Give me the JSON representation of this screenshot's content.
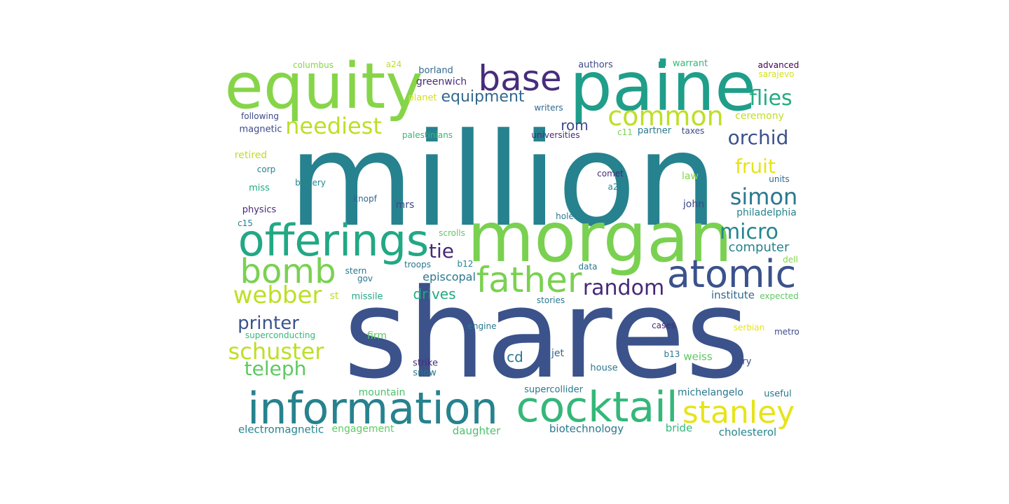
{
  "words": [
    {
      "text": "million",
      "color": "#26828e"
    },
    {
      "text": "shares",
      "color": "#3b528b"
    },
    {
      "text": "morgan",
      "color": "#7ad151"
    },
    {
      "text": "paine",
      "color": "#1f9e89"
    },
    {
      "text": "equity",
      "color": "#86d549"
    },
    {
      "text": "information",
      "color": "#26828e"
    },
    {
      "text": "cocktail",
      "color": "#35b779"
    },
    {
      "text": "offerings",
      "color": "#22a884"
    },
    {
      "text": "atomic",
      "color": "#3b528b"
    },
    {
      "text": "father",
      "color": "#7ad151"
    },
    {
      "text": "base",
      "color": "#472d7b"
    },
    {
      "text": "bomb",
      "color": "#7ad151"
    },
    {
      "text": "common",
      "color": "#bddf26"
    },
    {
      "text": "stanley",
      "color": "#e6e419"
    },
    {
      "text": "random",
      "color": "#482878"
    },
    {
      "text": "webber",
      "color": "#bddf26"
    },
    {
      "text": "schuster",
      "color": "#bddf26"
    },
    {
      "text": "neediest",
      "color": "#bddf26"
    },
    {
      "text": "simon",
      "color": "#2a788e"
    },
    {
      "text": "micro",
      "color": "#25858e"
    },
    {
      "text": "teleph",
      "color": "#5ec962"
    },
    {
      "text": "printer",
      "color": "#3b528b"
    },
    {
      "text": "orchid",
      "color": "#3b528b"
    },
    {
      "text": "flies",
      "color": "#25ab82"
    },
    {
      "text": "fruit",
      "color": "#e6e419"
    },
    {
      "text": "equipment",
      "color": "#31688e"
    },
    {
      "text": "tie",
      "color": "#482878"
    },
    {
      "text": "computer",
      "color": "#26828e"
    },
    {
      "text": "drives",
      "color": "#22a884"
    },
    {
      "text": "cd",
      "color": "#2a788e"
    },
    {
      "text": "rom",
      "color": "#3e4989"
    },
    {
      "text": "episcopal",
      "color": "#2a788e"
    },
    {
      "text": "institute",
      "color": "#31688e"
    },
    {
      "text": "biotechnology",
      "color": "#2a788e"
    },
    {
      "text": "electromagnetic",
      "color": "#25858e"
    },
    {
      "text": "engagement",
      "color": "#5ec962"
    },
    {
      "text": "daughter",
      "color": "#4ac16d"
    },
    {
      "text": "bride",
      "color": "#35b779"
    },
    {
      "text": "cholesterol",
      "color": "#25858e"
    },
    {
      "text": "michelangelo",
      "color": "#2a788e"
    },
    {
      "text": "supercollider",
      "color": "#2a788e"
    },
    {
      "text": "mountain",
      "color": "#4ac16d"
    },
    {
      "text": "weiss",
      "color": "#5ec962"
    },
    {
      "text": "jury",
      "color": "#3e4989"
    },
    {
      "text": "useful",
      "color": "#2a788e"
    },
    {
      "text": "house",
      "color": "#2a788e"
    },
    {
      "text": "jet",
      "color": "#31688e"
    },
    {
      "text": "strike",
      "color": "#472d7b"
    },
    {
      "text": "snow",
      "color": "#2a788e"
    },
    {
      "text": "firm",
      "color": "#5ec962"
    },
    {
      "text": "superconducting",
      "color": "#35b779"
    },
    {
      "text": "engine",
      "color": "#2a788e"
    },
    {
      "text": "b13",
      "color": "#2a788e"
    },
    {
      "text": "cases",
      "color": "#482878"
    },
    {
      "text": "serbian",
      "color": "#e6e419"
    },
    {
      "text": "metro",
      "color": "#3e4989"
    },
    {
      "text": "missile",
      "color": "#22a884"
    },
    {
      "text": "st",
      "color": "#bddf26"
    },
    {
      "text": "stories",
      "color": "#2a788e"
    },
    {
      "text": "expected",
      "color": "#5ec962"
    },
    {
      "text": "stern",
      "color": "#2a788e"
    },
    {
      "text": "gov",
      "color": "#2a788e"
    },
    {
      "text": "troops",
      "color": "#2a788e"
    },
    {
      "text": "b12",
      "color": "#25858e"
    },
    {
      "text": "data",
      "color": "#2a788e"
    },
    {
      "text": "dell",
      "color": "#86d549"
    },
    {
      "text": "scrolls",
      "color": "#5ec962"
    },
    {
      "text": "hole",
      "color": "#2a788e"
    },
    {
      "text": "philadelphia",
      "color": "#25858e"
    },
    {
      "text": "john",
      "color": "#3e4989"
    },
    {
      "text": "physics",
      "color": "#482878"
    },
    {
      "text": "c15",
      "color": "#25858e"
    },
    {
      "text": "knopf",
      "color": "#31688e"
    },
    {
      "text": "mrs",
      "color": "#3e4989"
    },
    {
      "text": "miss",
      "color": "#22a884"
    },
    {
      "text": "comet",
      "color": "#482878"
    },
    {
      "text": "a2",
      "color": "#26828e"
    },
    {
      "text": "units",
      "color": "#31688e"
    },
    {
      "text": "law",
      "color": "#86d549"
    },
    {
      "text": "corp",
      "color": "#25858e"
    },
    {
      "text": "battery",
      "color": "#25858e"
    },
    {
      "text": "retired",
      "color": "#bddf26"
    },
    {
      "text": "magnetic",
      "color": "#3e4989"
    },
    {
      "text": "following",
      "color": "#3e4989"
    },
    {
      "text": "palestinians",
      "color": "#35b779"
    },
    {
      "text": "universities",
      "color": "#482878"
    },
    {
      "text": "c11",
      "color": "#7ad151"
    },
    {
      "text": "partner",
      "color": "#2a788e"
    },
    {
      "text": "taxes",
      "color": "#3e4989"
    },
    {
      "text": "ceremony",
      "color": "#bddf26"
    },
    {
      "text": "writers",
      "color": "#31688e"
    },
    {
      "text": "planet",
      "color": "#d2e21b"
    },
    {
      "text": "greenwich",
      "color": "#472d7b"
    },
    {
      "text": "borland",
      "color": "#31688e"
    },
    {
      "text": "columbus",
      "color": "#86d549"
    },
    {
      "text": "a24",
      "color": "#bddf26"
    },
    {
      "text": "authors",
      "color": "#3e4989"
    },
    {
      "text": "warrant",
      "color": "#35b779"
    },
    {
      "text": "advanced",
      "color": "#440154"
    },
    {
      "text": "sarajevo",
      "color": "#d2e21b"
    }
  ]
}
